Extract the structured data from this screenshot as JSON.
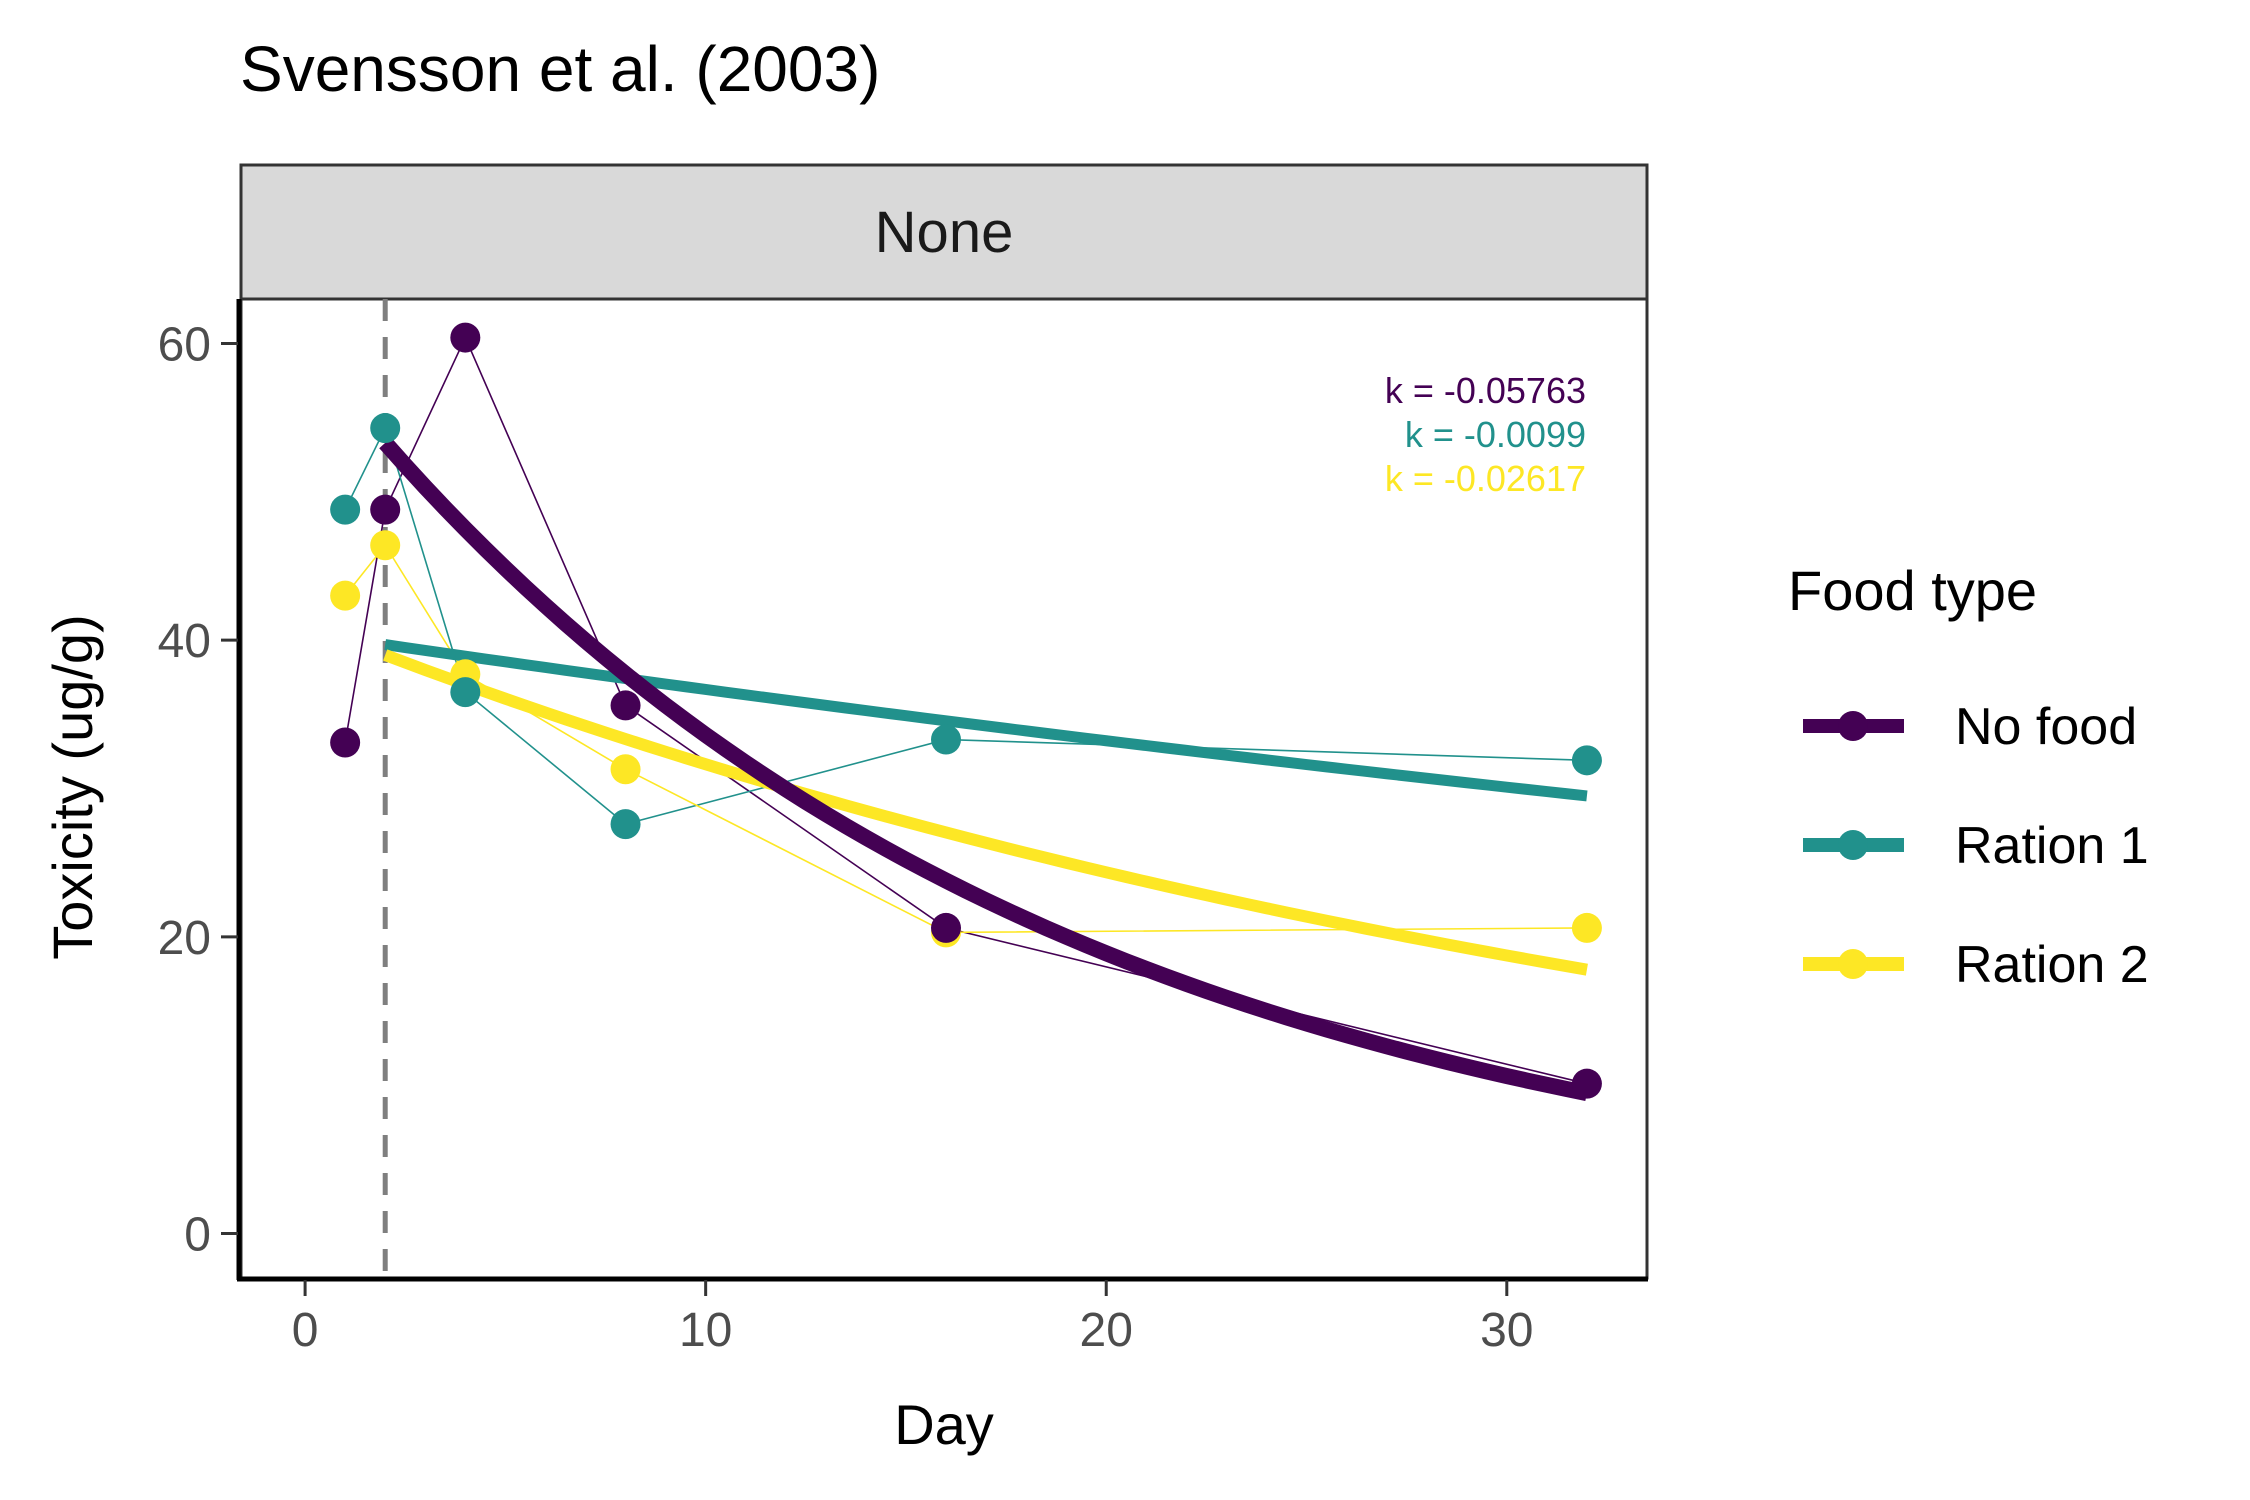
{
  "chart_data": {
    "type": "line",
    "title": "Svensson et al. (2003)",
    "facet_label": "None",
    "xlabel": "Day",
    "ylabel": "Toxicity (ug/g)",
    "xlim": [
      -1.6,
      33.5
    ],
    "ylim": [
      -3,
      63
    ],
    "x_ticks": [
      0,
      10,
      20,
      30
    ],
    "y_ticks": [
      0,
      20,
      40,
      60
    ],
    "vline_x": 2,
    "grid": false,
    "legend": {
      "title": "Food type",
      "position": "right"
    },
    "series": [
      {
        "name": "No food",
        "color": "#440154",
        "x": [
          1,
          2,
          4,
          8,
          16,
          32
        ],
        "y": [
          33.1,
          48.8,
          60.4,
          35.6,
          20.6,
          10.1
        ],
        "fit": {
          "k": -0.05763,
          "label": "k = -0.05763",
          "x_start": 2,
          "x_end": 32,
          "y_start": 53.3
        }
      },
      {
        "name": "Ration 1",
        "color": "#21918c",
        "x": [
          1,
          2,
          4,
          8,
          16,
          32
        ],
        "y": [
          48.8,
          54.3,
          36.5,
          27.6,
          33.3,
          31.9
        ],
        "fit": {
          "k": -0.0099,
          "label": "k = -0.0099",
          "x_start": 2,
          "x_end": 32,
          "y_start": 39.7
        }
      },
      {
        "name": "Ration 2",
        "color": "#fde725",
        "x": [
          1,
          2,
          4,
          8,
          16,
          32
        ],
        "y": [
          43.0,
          46.4,
          37.7,
          31.3,
          20.3,
          20.6
        ],
        "fit": {
          "k": -0.02617,
          "label": "k = -0.02617",
          "x_start": 2,
          "x_end": 32,
          "y_start": 39.0
        }
      }
    ]
  },
  "colors": {
    "axis": "#000000",
    "panel_border": "#333333",
    "strip_fill": "#d9d9d9",
    "vline": "#7f7f7f",
    "tick_text": "#4d4d4d"
  }
}
